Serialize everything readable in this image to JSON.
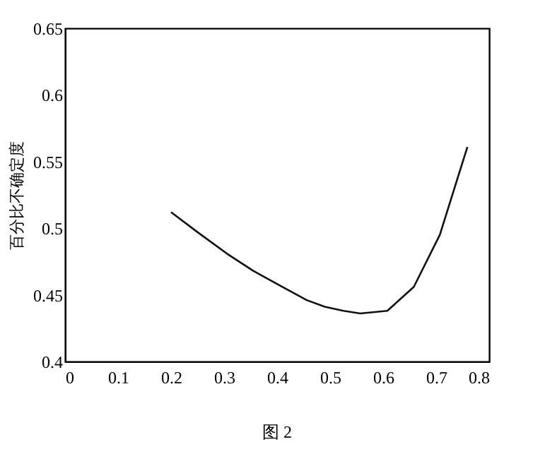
{
  "chart_data": {
    "type": "line",
    "ylabel": "百分比不确定度",
    "annotations": [
      "图 2"
    ],
    "x": [
      0.2,
      0.25,
      0.305,
      0.355,
      0.41,
      0.456,
      0.49,
      0.525,
      0.557,
      0.608,
      0.658,
      0.707,
      0.759
    ],
    "values": [
      0.512,
      0.497,
      0.481,
      0.468,
      0.456,
      0.446,
      0.441,
      0.438,
      0.436,
      0.438,
      0.456,
      0.495,
      0.561
    ],
    "color": "#111111",
    "xlim": [
      0,
      0.8
    ],
    "ylim": [
      0.4,
      0.65
    ],
    "xticks": [
      0,
      0.1,
      0.2,
      0.3,
      0.4,
      0.5,
      0.6,
      0.7,
      0.8
    ],
    "yticks": [
      0.4,
      0.45,
      0.5,
      0.55,
      0.6,
      0.65
    ],
    "grid": false,
    "marker": "none",
    "line_style": "solid"
  }
}
